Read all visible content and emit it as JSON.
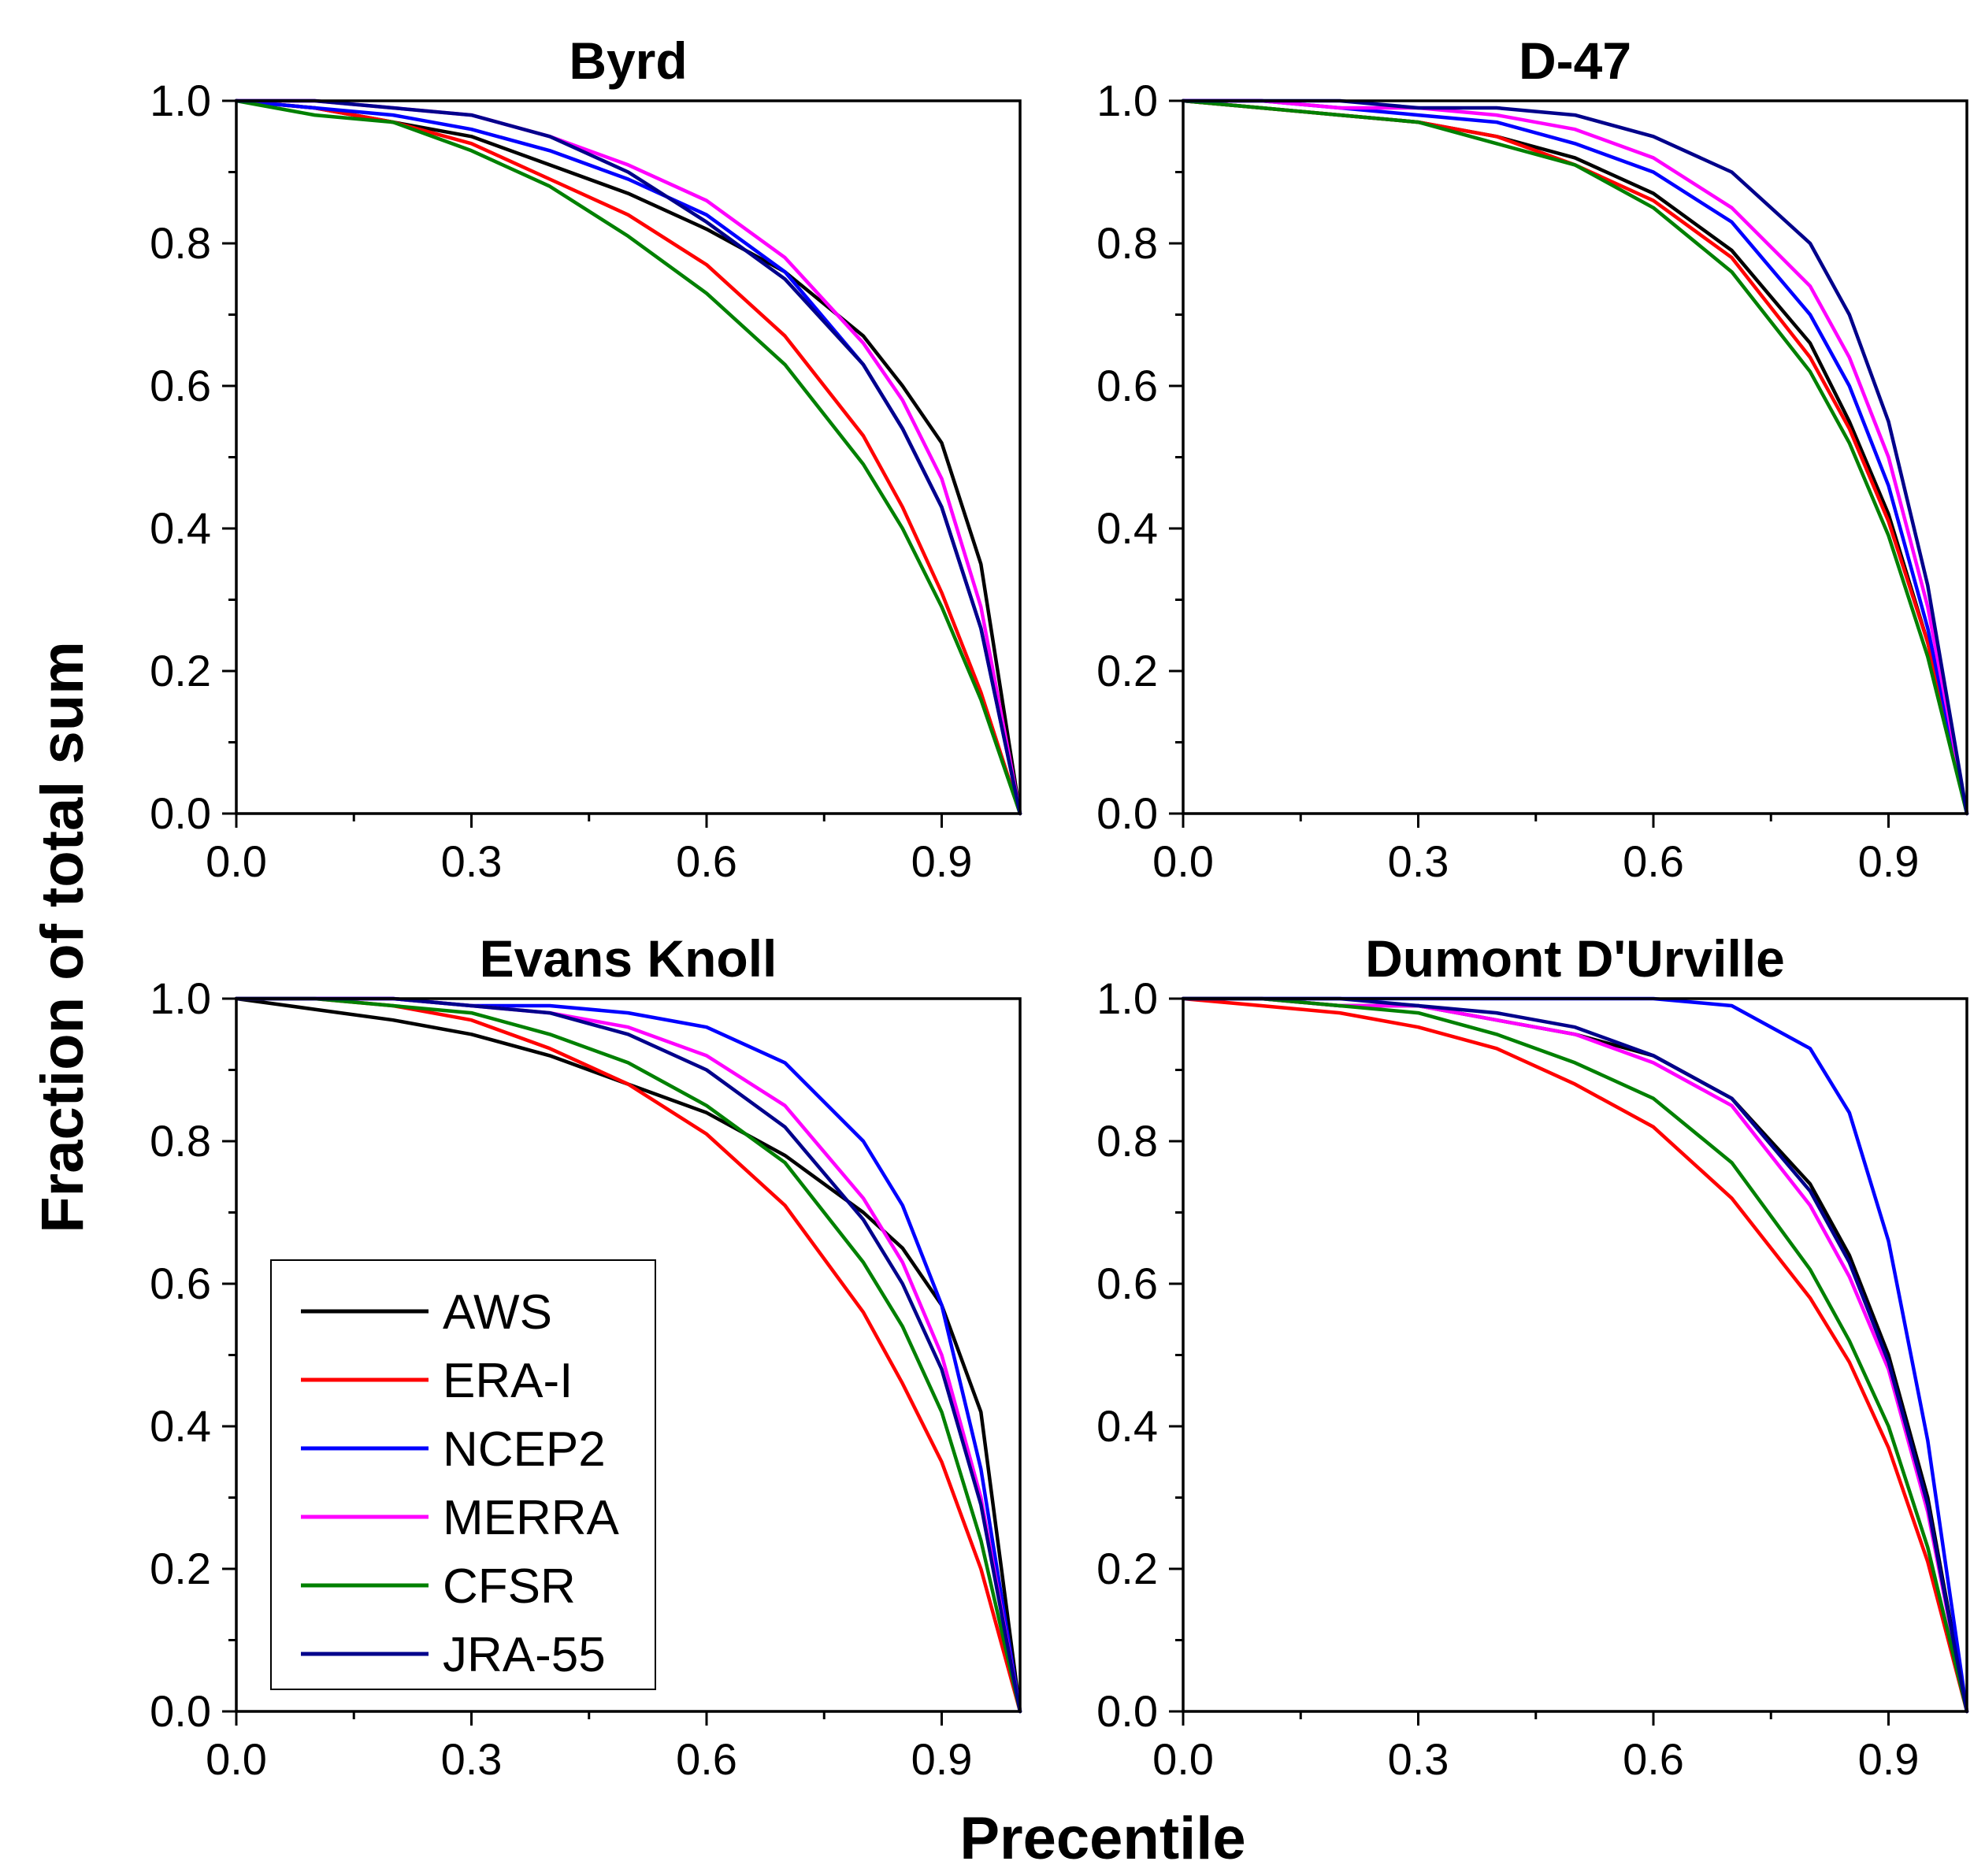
{
  "figure": {
    "ylabel": "Fraction of total sum",
    "xlabel": "Precentile"
  },
  "legend": {
    "position": "bottom-left of Evans Knoll panel",
    "items": [
      {
        "name": "AWS",
        "color": "#000000"
      },
      {
        "name": "ERA-I",
        "color": "#ff0000"
      },
      {
        "name": "NCEP2",
        "color": "#0000ff"
      },
      {
        "name": "MERRA",
        "color": "#ff00ff"
      },
      {
        "name": "CFSR",
        "color": "#008000"
      },
      {
        "name": "JRA-55",
        "color": "#00008b"
      }
    ]
  },
  "chart_data": [
    {
      "type": "line",
      "title": "Byrd",
      "xlim": [
        0,
        1.0
      ],
      "ylim": [
        0,
        1.0
      ],
      "xticks": [
        "0.0",
        "0.3",
        "0.6",
        "0.9"
      ],
      "yticks": [
        "0.0",
        "0.2",
        "0.4",
        "0.6",
        "0.8",
        "1.0"
      ],
      "x": [
        0,
        0.1,
        0.2,
        0.3,
        0.4,
        0.5,
        0.6,
        0.7,
        0.8,
        0.85,
        0.9,
        0.95,
        1.0
      ],
      "series": [
        {
          "name": "AWS",
          "color": "#000000",
          "values": [
            1.0,
            0.99,
            0.97,
            0.95,
            0.91,
            0.87,
            0.82,
            0.76,
            0.67,
            0.6,
            0.52,
            0.35,
            0.0
          ]
        },
        {
          "name": "ERA-I",
          "color": "#ff0000",
          "values": [
            1.0,
            0.99,
            0.97,
            0.94,
            0.89,
            0.84,
            0.77,
            0.67,
            0.53,
            0.43,
            0.31,
            0.17,
            0.0
          ]
        },
        {
          "name": "NCEP2",
          "color": "#0000ff",
          "values": [
            1.0,
            0.99,
            0.98,
            0.96,
            0.93,
            0.89,
            0.84,
            0.76,
            0.63,
            0.54,
            0.43,
            0.26,
            0.0
          ]
        },
        {
          "name": "MERRA",
          "color": "#ff00ff",
          "values": [
            1.0,
            1.0,
            0.99,
            0.98,
            0.95,
            0.91,
            0.86,
            0.78,
            0.66,
            0.58,
            0.47,
            0.29,
            0.0
          ]
        },
        {
          "name": "CFSR",
          "color": "#008000",
          "values": [
            1.0,
            0.98,
            0.97,
            0.93,
            0.88,
            0.81,
            0.73,
            0.63,
            0.49,
            0.4,
            0.29,
            0.16,
            0.0
          ]
        },
        {
          "name": "JRA-55",
          "color": "#00008b",
          "values": [
            1.0,
            1.0,
            0.99,
            0.98,
            0.95,
            0.9,
            0.83,
            0.75,
            0.63,
            0.54,
            0.43,
            0.26,
            0.0
          ]
        }
      ]
    },
    {
      "type": "line",
      "title": "D-47",
      "xlim": [
        0,
        1.0
      ],
      "ylim": [
        0,
        1.0
      ],
      "xticks": [
        "0.0",
        "0.3",
        "0.6",
        "0.9"
      ],
      "yticks": [
        "0.0",
        "0.2",
        "0.4",
        "0.6",
        "0.8",
        "1.0"
      ],
      "x": [
        0,
        0.1,
        0.2,
        0.3,
        0.4,
        0.5,
        0.6,
        0.7,
        0.8,
        0.85,
        0.9,
        0.95,
        1.0
      ],
      "series": [
        {
          "name": "AWS",
          "color": "#000000",
          "values": [
            1.0,
            0.99,
            0.98,
            0.97,
            0.95,
            0.92,
            0.87,
            0.79,
            0.66,
            0.55,
            0.42,
            0.24,
            0.0
          ]
        },
        {
          "name": "ERA-I",
          "color": "#ff0000",
          "values": [
            1.0,
            0.99,
            0.98,
            0.97,
            0.95,
            0.91,
            0.86,
            0.78,
            0.64,
            0.54,
            0.41,
            0.24,
            0.0
          ]
        },
        {
          "name": "NCEP2",
          "color": "#0000ff",
          "values": [
            1.0,
            1.0,
            0.99,
            0.98,
            0.97,
            0.94,
            0.9,
            0.83,
            0.7,
            0.6,
            0.46,
            0.26,
            0.0
          ]
        },
        {
          "name": "MERRA",
          "color": "#ff00ff",
          "values": [
            1.0,
            1.0,
            0.99,
            0.99,
            0.98,
            0.96,
            0.92,
            0.85,
            0.74,
            0.64,
            0.5,
            0.29,
            0.0
          ]
        },
        {
          "name": "CFSR",
          "color": "#008000",
          "values": [
            1.0,
            0.99,
            0.98,
            0.97,
            0.94,
            0.91,
            0.85,
            0.76,
            0.62,
            0.52,
            0.39,
            0.22,
            0.0
          ]
        },
        {
          "name": "JRA-55",
          "color": "#00008b",
          "values": [
            1.0,
            1.0,
            1.0,
            0.99,
            0.99,
            0.98,
            0.95,
            0.9,
            0.8,
            0.7,
            0.55,
            0.32,
            0.0
          ]
        }
      ]
    },
    {
      "type": "line",
      "title": "Evans Knoll",
      "xlim": [
        0,
        1.0
      ],
      "ylim": [
        0,
        1.0
      ],
      "xticks": [
        "0.0",
        "0.3",
        "0.6",
        "0.9"
      ],
      "yticks": [
        "0.0",
        "0.2",
        "0.4",
        "0.6",
        "0.8",
        "1.0"
      ],
      "x": [
        0,
        0.1,
        0.2,
        0.3,
        0.4,
        0.5,
        0.6,
        0.7,
        0.8,
        0.85,
        0.9,
        0.95,
        1.0
      ],
      "series": [
        {
          "name": "AWS",
          "color": "#000000",
          "values": [
            1.0,
            0.985,
            0.97,
            0.95,
            0.92,
            0.88,
            0.84,
            0.78,
            0.7,
            0.65,
            0.57,
            0.42,
            0.0
          ]
        },
        {
          "name": "ERA-I",
          "color": "#ff0000",
          "values": [
            1.0,
            1.0,
            0.99,
            0.97,
            0.93,
            0.88,
            0.81,
            0.71,
            0.56,
            0.46,
            0.35,
            0.2,
            0.0
          ]
        },
        {
          "name": "NCEP2",
          "color": "#0000ff",
          "values": [
            1.0,
            1.0,
            1.0,
            0.99,
            0.99,
            0.98,
            0.96,
            0.91,
            0.8,
            0.71,
            0.57,
            0.34,
            0.0
          ]
        },
        {
          "name": "MERRA",
          "color": "#ff00ff",
          "values": [
            1.0,
            1.0,
            1.0,
            0.99,
            0.98,
            0.96,
            0.92,
            0.85,
            0.72,
            0.63,
            0.5,
            0.3,
            0.0
          ]
        },
        {
          "name": "CFSR",
          "color": "#008000",
          "values": [
            1.0,
            1.0,
            0.99,
            0.98,
            0.95,
            0.91,
            0.85,
            0.77,
            0.63,
            0.54,
            0.42,
            0.24,
            0.0
          ]
        },
        {
          "name": "JRA-55",
          "color": "#00008b",
          "values": [
            1.0,
            1.0,
            1.0,
            0.99,
            0.98,
            0.95,
            0.9,
            0.82,
            0.69,
            0.6,
            0.48,
            0.29,
            0.0
          ]
        }
      ]
    },
    {
      "type": "line",
      "title": "Dumont D'Urville",
      "xlim": [
        0,
        1.0
      ],
      "ylim": [
        0,
        1.0
      ],
      "xticks": [
        "0.0",
        "0.3",
        "0.6",
        "0.9"
      ],
      "yticks": [
        "0.0",
        "0.2",
        "0.4",
        "0.6",
        "0.8",
        "1.0"
      ],
      "x": [
        0,
        0.1,
        0.2,
        0.3,
        0.4,
        0.5,
        0.6,
        0.7,
        0.8,
        0.85,
        0.9,
        0.95,
        1.0
      ],
      "series": [
        {
          "name": "AWS",
          "color": "#000000",
          "values": [
            1.0,
            1.0,
            0.99,
            0.99,
            0.97,
            0.95,
            0.92,
            0.86,
            0.74,
            0.64,
            0.5,
            0.3,
            0.0
          ]
        },
        {
          "name": "ERA-I",
          "color": "#ff0000",
          "values": [
            1.0,
            0.99,
            0.98,
            0.96,
            0.93,
            0.88,
            0.82,
            0.72,
            0.58,
            0.49,
            0.37,
            0.21,
            0.0
          ]
        },
        {
          "name": "NCEP2",
          "color": "#0000ff",
          "values": [
            1.0,
            1.0,
            1.0,
            1.0,
            1.0,
            1.0,
            1.0,
            0.99,
            0.93,
            0.84,
            0.66,
            0.38,
            0.0
          ]
        },
        {
          "name": "MERRA",
          "color": "#ff00ff",
          "values": [
            1.0,
            1.0,
            0.99,
            0.99,
            0.97,
            0.95,
            0.91,
            0.85,
            0.71,
            0.61,
            0.48,
            0.28,
            0.0
          ]
        },
        {
          "name": "CFSR",
          "color": "#008000",
          "values": [
            1.0,
            1.0,
            0.99,
            0.98,
            0.95,
            0.91,
            0.86,
            0.77,
            0.62,
            0.52,
            0.4,
            0.23,
            0.0
          ]
        },
        {
          "name": "JRA-55",
          "color": "#00008b",
          "values": [
            1.0,
            1.0,
            1.0,
            0.99,
            0.98,
            0.96,
            0.92,
            0.86,
            0.73,
            0.63,
            0.49,
            0.29,
            0.0
          ]
        }
      ]
    }
  ]
}
